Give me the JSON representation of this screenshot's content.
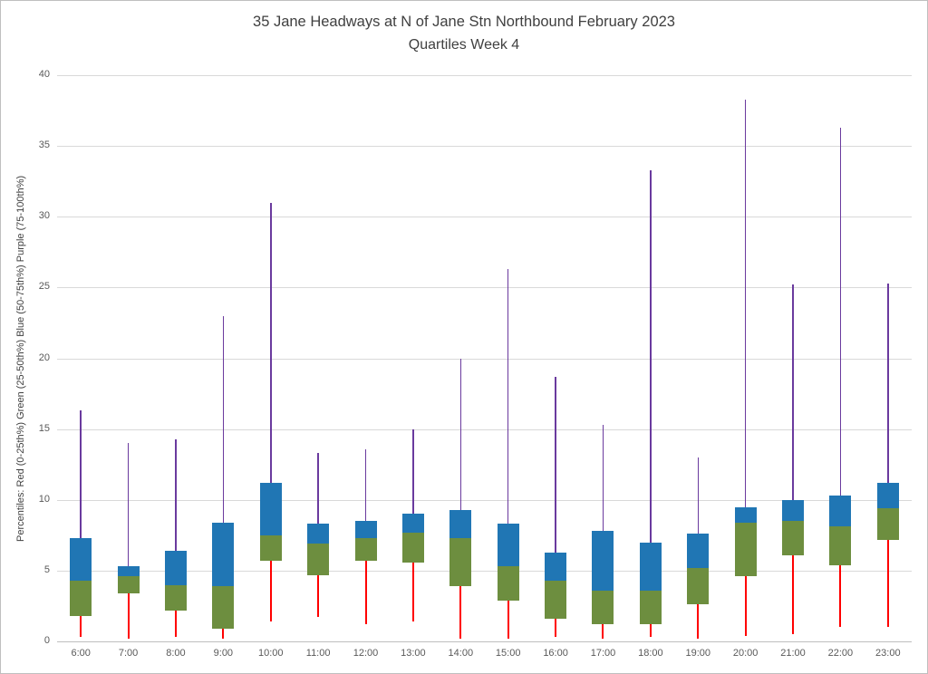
{
  "chart": {
    "title_line1": "35 Jane Headways at N of Jane Stn Northbound February 2023",
    "title_line2": "Quartiles Week 4",
    "y_axis_label": "Percentiles:  Red (0-25th%)  Green (25-50th%)  Blue (50-75th%)  Purple (75-100th%)"
  },
  "chart_data": {
    "type": "boxplot",
    "title": "35 Jane Headways at N of Jane Stn Northbound February 2023",
    "subtitle": "Quartiles Week 4",
    "xlabel": "",
    "ylabel": "Percentiles:  Red (0-25th%)  Green (25-50th%)  Blue (50-75th%)  Purple (75-100th%)",
    "ylim": [
      0,
      40
    ],
    "y_ticks": [
      0,
      5,
      10,
      15,
      20,
      25,
      30,
      35,
      40
    ],
    "grid": true,
    "legend_position": "none",
    "categories": [
      "6:00",
      "7:00",
      "8:00",
      "9:00",
      "10:00",
      "11:00",
      "12:00",
      "13:00",
      "14:00",
      "15:00",
      "16:00",
      "17:00",
      "18:00",
      "19:00",
      "20:00",
      "21:00",
      "22:00",
      "23:00"
    ],
    "series_meaning": [
      "min (0th%)",
      "p25",
      "p50 (median)",
      "p75",
      "max (100th%)"
    ],
    "boxes": [
      {
        "hour": "6:00",
        "min": 0.3,
        "p25": 1.8,
        "p50": 4.3,
        "p75": 7.3,
        "max": 16.3
      },
      {
        "hour": "7:00",
        "min": 0.2,
        "p25": 3.4,
        "p50": 4.6,
        "p75": 5.3,
        "max": 14.0
      },
      {
        "hour": "8:00",
        "min": 0.3,
        "p25": 2.2,
        "p50": 4.0,
        "p75": 6.4,
        "max": 14.3
      },
      {
        "hour": "9:00",
        "min": 0.2,
        "p25": 0.9,
        "p50": 3.9,
        "p75": 8.4,
        "max": 23.0
      },
      {
        "hour": "10:00",
        "min": 1.4,
        "p25": 5.7,
        "p50": 7.5,
        "p75": 11.2,
        "max": 31.0
      },
      {
        "hour": "11:00",
        "min": 1.7,
        "p25": 4.7,
        "p50": 6.9,
        "p75": 8.3,
        "max": 13.3
      },
      {
        "hour": "12:00",
        "min": 1.2,
        "p25": 5.7,
        "p50": 7.3,
        "p75": 8.5,
        "max": 13.6
      },
      {
        "hour": "13:00",
        "min": 1.4,
        "p25": 5.6,
        "p50": 7.7,
        "p75": 9.0,
        "max": 15.0
      },
      {
        "hour": "14:00",
        "min": 0.2,
        "p25": 3.9,
        "p50": 7.3,
        "p75": 9.3,
        "max": 20.0
      },
      {
        "hour": "15:00",
        "min": 0.2,
        "p25": 2.9,
        "p50": 5.3,
        "p75": 8.3,
        "max": 26.3
      },
      {
        "hour": "16:00",
        "min": 0.3,
        "p25": 1.6,
        "p50": 4.3,
        "p75": 6.3,
        "max": 18.7
      },
      {
        "hour": "17:00",
        "min": 0.2,
        "p25": 1.2,
        "p50": 3.6,
        "p75": 7.8,
        "max": 15.3
      },
      {
        "hour": "18:00",
        "min": 0.3,
        "p25": 1.2,
        "p50": 3.6,
        "p75": 7.0,
        "max": 33.3
      },
      {
        "hour": "19:00",
        "min": 0.2,
        "p25": 2.6,
        "p50": 5.2,
        "p75": 7.6,
        "max": 13.0
      },
      {
        "hour": "20:00",
        "min": 0.4,
        "p25": 4.6,
        "p50": 8.4,
        "p75": 9.5,
        "max": 38.3
      },
      {
        "hour": "21:00",
        "min": 0.5,
        "p25": 6.1,
        "p50": 8.5,
        "p75": 10.0,
        "max": 25.2
      },
      {
        "hour": "22:00",
        "min": 1.0,
        "p25": 5.4,
        "p50": 8.1,
        "p75": 10.3,
        "max": 36.3
      },
      {
        "hour": "23:00",
        "min": 1.0,
        "p25": 7.2,
        "p50": 9.4,
        "p75": 11.2,
        "max": 25.3
      }
    ],
    "colors": {
      "red": "#ff0000",
      "green": "#6d8e3f",
      "blue": "#2076b4",
      "purple": "#6a3a9e",
      "gridline": "#d9d9d9",
      "text": "#595959",
      "title": "#404040"
    }
  }
}
